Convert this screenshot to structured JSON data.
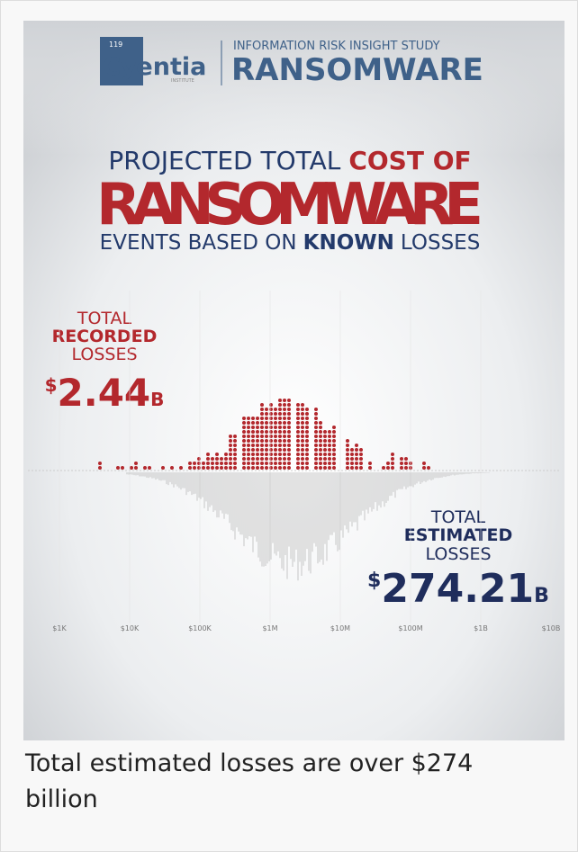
{
  "image": {
    "logo": {
      "badge": "119",
      "name": "Cyentia",
      "sub": "INSTITUTE"
    },
    "study": "INFORMATION RISK INSIGHT STUDY",
    "report": "RANSOMWARE",
    "headline": {
      "line1": [
        "PROJECTED TOTAL",
        "COST OF"
      ],
      "line2": "RANSOMWARE",
      "line3": [
        "EVENTS BASED ON",
        "KNOWN",
        "LOSSES"
      ]
    },
    "recorded": {
      "lines": [
        "TOTAL",
        "RECORDED",
        "LOSSES"
      ],
      "currency": "$",
      "amount": "2.44",
      "unit": "B"
    },
    "estimated": {
      "lines": [
        "TOTAL",
        "ESTIMATED",
        "LOSSES"
      ],
      "currency": "$",
      "amount": "274.21",
      "unit": "B"
    },
    "axis_labels": [
      "$1K",
      "$10K",
      "$100K",
      "$1M",
      "$10M",
      "$100M",
      "$1B",
      "$10B"
    ]
  },
  "caption": "Total estimated losses are over $274 billion"
}
